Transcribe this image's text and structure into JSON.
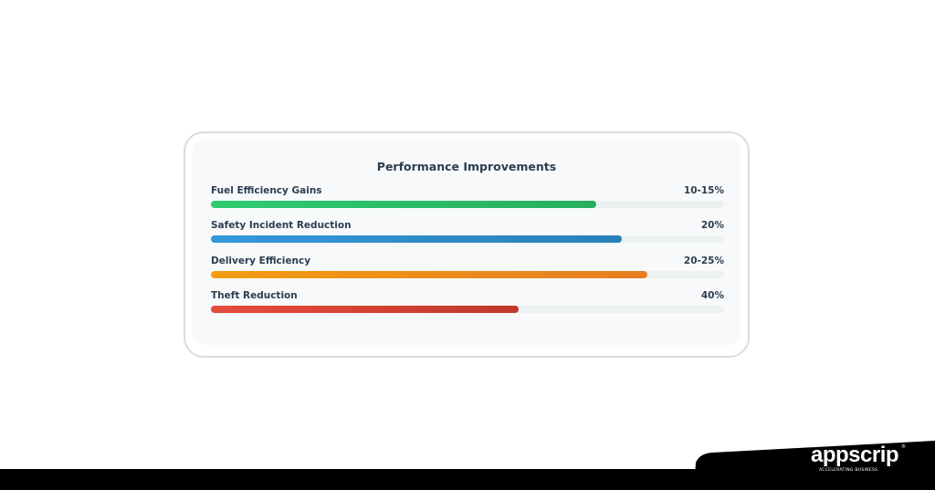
{
  "chart_data": {
    "type": "bar",
    "orientation": "horizontal",
    "title": "Performance Improvements",
    "categories": [
      "Fuel Efficiency Gains",
      "Safety Incident Reduction",
      "Delivery Efficiency",
      "Theft Reduction"
    ],
    "value_labels": [
      "10-15%",
      "20%",
      "20-25%",
      "40%"
    ],
    "fill_percent": [
      75,
      80,
      85,
      60
    ],
    "colors": [
      [
        "#2ecc71",
        "#27ae60"
      ],
      [
        "#3498db",
        "#2980b9"
      ],
      [
        "#f39c12",
        "#e67e22"
      ],
      [
        "#e74c3c",
        "#c0392b"
      ]
    ],
    "track_color": "#ecf0f1",
    "grid": false
  },
  "brand": {
    "logo": "appscrip",
    "tagline": "ACCELERATING BUSINESS",
    "reg": "®"
  }
}
